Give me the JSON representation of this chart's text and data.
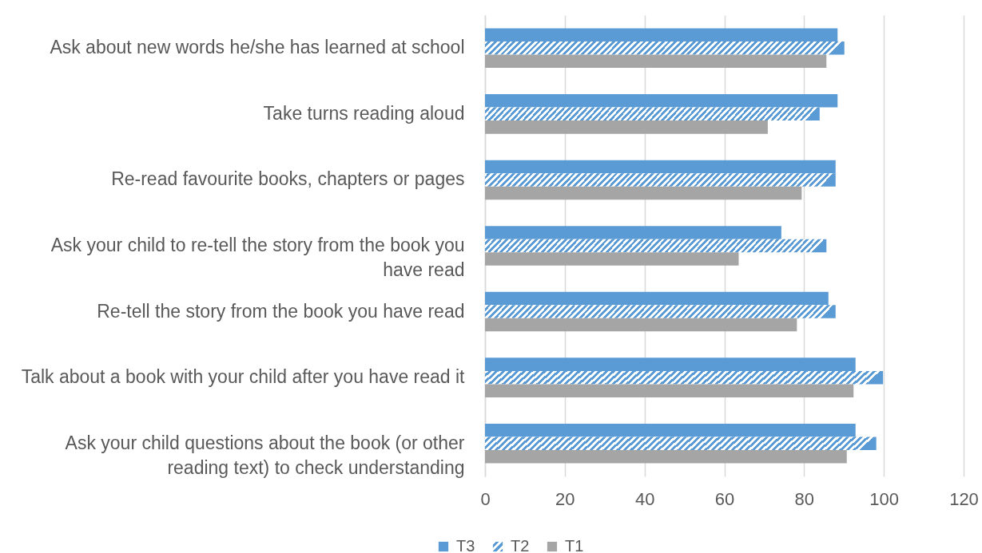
{
  "chart_data": {
    "type": "bar",
    "orientation": "horizontal",
    "categories": [
      "Ask about new words he/she has learned at school",
      "Take turns reading aloud",
      "Re-read favourite books, chapters or pages",
      "Ask your child to re-tell the story from the book you have read",
      "Re-tell the story from the book you have read",
      "Talk about a book with your child after you have read it",
      "Ask your child questions about the book (or other reading text) to check understanding"
    ],
    "series": [
      {
        "name": "T3",
        "color": "#5b9bd5",
        "values": [
          88.4,
          88.4,
          87.9,
          74.3,
          86.1,
          92.9,
          92.9
        ]
      },
      {
        "name": "T2",
        "color": "#5b9bd5",
        "values": [
          90.1,
          83.9,
          87.9,
          85.6,
          87.9,
          99.8,
          98.1
        ]
      },
      {
        "name": "T1",
        "color": "#a5a5a5",
        "values": [
          85.6,
          70.9,
          79.4,
          63.6,
          78.2,
          92.4,
          90.7
        ]
      }
    ],
    "xlim": [
      0,
      120
    ],
    "xticks": [
      0,
      20,
      40,
      60,
      80,
      100,
      120
    ],
    "grid": "x",
    "legend": "bottom"
  }
}
